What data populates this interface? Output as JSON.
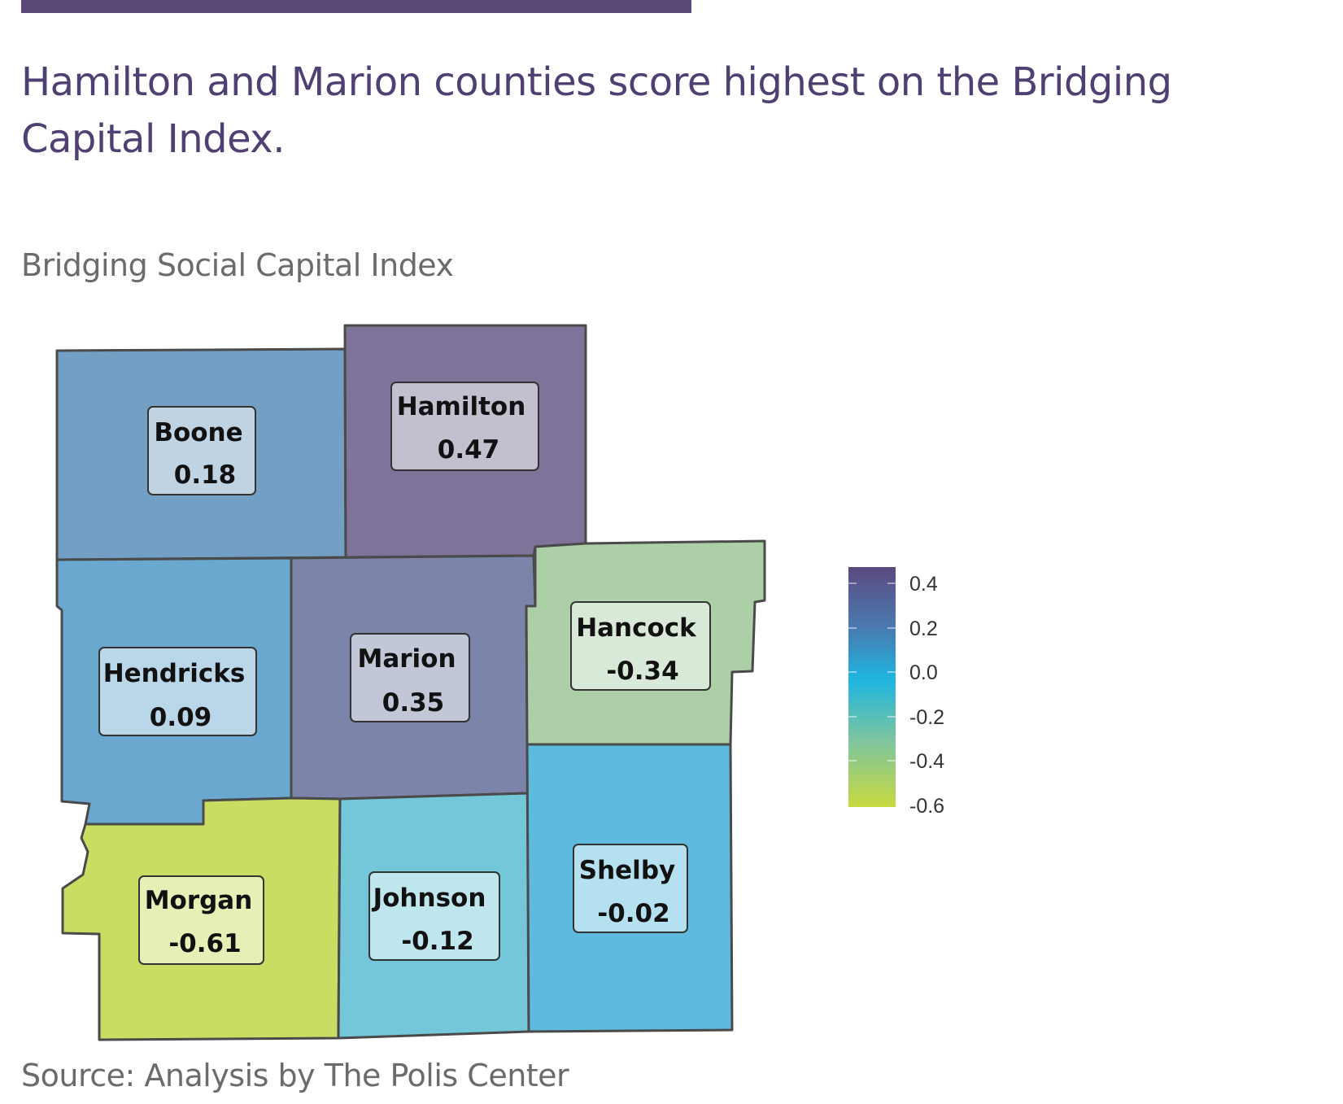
{
  "header": {
    "headline": "Hamilton and Marion counties score highest on the Bridging Capital Index.",
    "subtitle": "Bridging Social Capital Index"
  },
  "footer": {
    "source": "Source: Analysis by The Polis Center"
  },
  "colors": {
    "accent_bar": "#5a4a7a",
    "headline": "#4f3f73",
    "muted_text": "#6b6b6b",
    "scale": [
      "#5b4a80",
      "#4a7ab0",
      "#1fb6e0",
      "#7cc4a0",
      "#c8da40"
    ]
  },
  "map": {
    "counties": [
      {
        "id": "boone",
        "name": "Boone",
        "value": "0.18",
        "fill": "#749fc4"
      },
      {
        "id": "hamilton",
        "name": "Hamilton",
        "value": "0.47",
        "fill": "#7f7399"
      },
      {
        "id": "hendricks",
        "name": "Hendricks",
        "value": "0.09",
        "fill": "#6aa8cf"
      },
      {
        "id": "marion",
        "name": "Marion",
        "value": "0.35",
        "fill": "#7c84a9"
      },
      {
        "id": "hancock",
        "name": "Hancock",
        "value": "-0.34",
        "fill": "#adcfa8"
      },
      {
        "id": "morgan",
        "name": "Morgan",
        "value": "-0.61",
        "fill": "#cadc62"
      },
      {
        "id": "johnson",
        "name": "Johnson",
        "value": "-0.12",
        "fill": "#74c6d9"
      },
      {
        "id": "shelby",
        "name": "Shelby",
        "value": "-0.02",
        "fill": "#5fbbde"
      }
    ]
  },
  "legend": {
    "ticks": [
      "0.4",
      "0.2",
      "0.0",
      "-0.2",
      "-0.4",
      "-0.6"
    ]
  }
}
